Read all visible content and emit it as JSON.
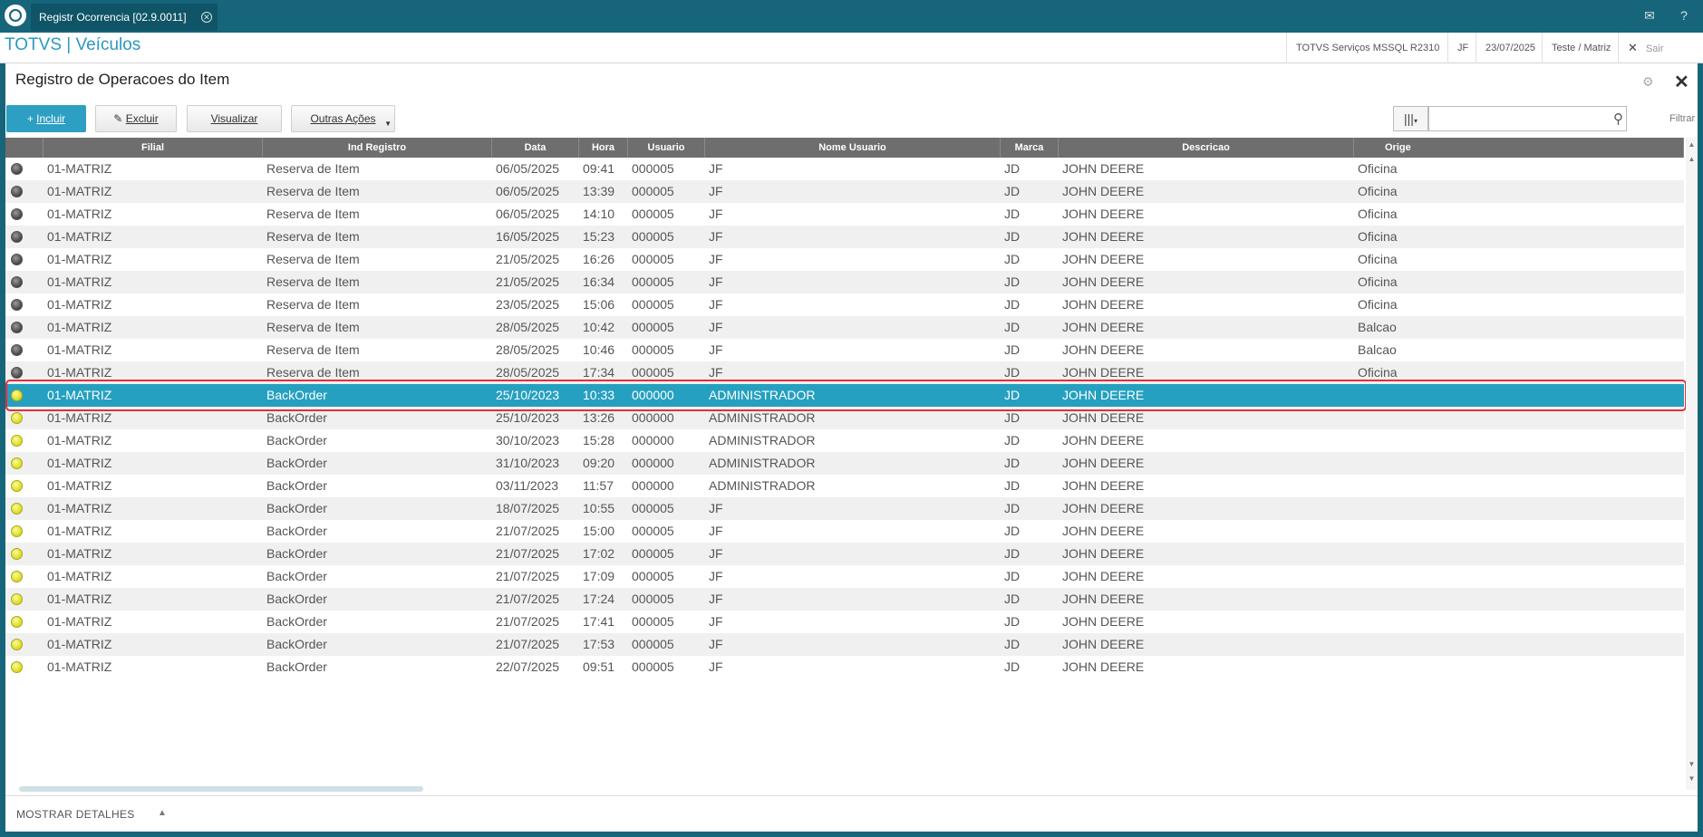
{
  "window": {
    "tab_title": "Registr Ocorrencia [02.9.0011]"
  },
  "appbar": {
    "title": "TOTVS | Veículos",
    "env": "TOTVS Serviços MSSQL R2310",
    "user": "JF",
    "date": "23/07/2025",
    "company": "Teste / Matriz",
    "logout": "Sair"
  },
  "panel": {
    "title": "Registro de Operacoes do Item",
    "toolbar": {
      "incluir": "Incluir",
      "excluir": "Excluir",
      "visualizar": "Visualizar",
      "outras": "Outras Ações"
    },
    "filter_label": "Filtrar"
  },
  "grid": {
    "columns": [
      "Filial",
      "Ind Registro",
      "Data",
      "Hora",
      "Usuario",
      "Nome Usuario",
      "Marca",
      "Descricao",
      "Orige"
    ],
    "rows": [
      {
        "status": "gray",
        "filial": "01-MATRIZ",
        "ind": "Reserva de Item",
        "data": "06/05/2025",
        "hora": "09:41",
        "usuario": "000005",
        "nome": "JF",
        "marca": "JD",
        "descricao": "JOHN DEERE",
        "origem": "Oficina"
      },
      {
        "status": "gray",
        "filial": "01-MATRIZ",
        "ind": "Reserva de Item",
        "data": "06/05/2025",
        "hora": "13:39",
        "usuario": "000005",
        "nome": "JF",
        "marca": "JD",
        "descricao": "JOHN DEERE",
        "origem": "Oficina"
      },
      {
        "status": "gray",
        "filial": "01-MATRIZ",
        "ind": "Reserva de Item",
        "data": "06/05/2025",
        "hora": "14:10",
        "usuario": "000005",
        "nome": "JF",
        "marca": "JD",
        "descricao": "JOHN DEERE",
        "origem": "Oficina"
      },
      {
        "status": "gray",
        "filial": "01-MATRIZ",
        "ind": "Reserva de Item",
        "data": "16/05/2025",
        "hora": "15:23",
        "usuario": "000005",
        "nome": "JF",
        "marca": "JD",
        "descricao": "JOHN DEERE",
        "origem": "Oficina"
      },
      {
        "status": "gray",
        "filial": "01-MATRIZ",
        "ind": "Reserva de Item",
        "data": "21/05/2025",
        "hora": "16:26",
        "usuario": "000005",
        "nome": "JF",
        "marca": "JD",
        "descricao": "JOHN DEERE",
        "origem": "Oficina"
      },
      {
        "status": "gray",
        "filial": "01-MATRIZ",
        "ind": "Reserva de Item",
        "data": "21/05/2025",
        "hora": "16:34",
        "usuario": "000005",
        "nome": "JF",
        "marca": "JD",
        "descricao": "JOHN DEERE",
        "origem": "Oficina"
      },
      {
        "status": "gray",
        "filial": "01-MATRIZ",
        "ind": "Reserva de Item",
        "data": "23/05/2025",
        "hora": "15:06",
        "usuario": "000005",
        "nome": "JF",
        "marca": "JD",
        "descricao": "JOHN DEERE",
        "origem": "Oficina"
      },
      {
        "status": "gray",
        "filial": "01-MATRIZ",
        "ind": "Reserva de Item",
        "data": "28/05/2025",
        "hora": "10:42",
        "usuario": "000005",
        "nome": "JF",
        "marca": "JD",
        "descricao": "JOHN DEERE",
        "origem": "Balcao"
      },
      {
        "status": "gray",
        "filial": "01-MATRIZ",
        "ind": "Reserva de Item",
        "data": "28/05/2025",
        "hora": "10:46",
        "usuario": "000005",
        "nome": "JF",
        "marca": "JD",
        "descricao": "JOHN DEERE",
        "origem": "Balcao"
      },
      {
        "status": "gray",
        "filial": "01-MATRIZ",
        "ind": "Reserva de Item",
        "data": "28/05/2025",
        "hora": "17:34",
        "usuario": "000005",
        "nome": "JF",
        "marca": "JD",
        "descricao": "JOHN DEERE",
        "origem": "Oficina"
      },
      {
        "status": "yellow",
        "filial": "01-MATRIZ",
        "ind": "BackOrder",
        "data": "25/10/2023",
        "hora": "10:33",
        "usuario": "000000",
        "nome": "ADMINISTRADOR",
        "marca": "JD",
        "descricao": "JOHN DEERE",
        "origem": "",
        "selected": true
      },
      {
        "status": "yellow",
        "filial": "01-MATRIZ",
        "ind": "BackOrder",
        "data": "25/10/2023",
        "hora": "13:26",
        "usuario": "000000",
        "nome": "ADMINISTRADOR",
        "marca": "JD",
        "descricao": "JOHN DEERE",
        "origem": ""
      },
      {
        "status": "yellow",
        "filial": "01-MATRIZ",
        "ind": "BackOrder",
        "data": "30/10/2023",
        "hora": "15:28",
        "usuario": "000000",
        "nome": "ADMINISTRADOR",
        "marca": "JD",
        "descricao": "JOHN DEERE",
        "origem": ""
      },
      {
        "status": "yellow",
        "filial": "01-MATRIZ",
        "ind": "BackOrder",
        "data": "31/10/2023",
        "hora": "09:20",
        "usuario": "000000",
        "nome": "ADMINISTRADOR",
        "marca": "JD",
        "descricao": "JOHN DEERE",
        "origem": ""
      },
      {
        "status": "yellow",
        "filial": "01-MATRIZ",
        "ind": "BackOrder",
        "data": "03/11/2023",
        "hora": "11:57",
        "usuario": "000000",
        "nome": "ADMINISTRADOR",
        "marca": "JD",
        "descricao": "JOHN DEERE",
        "origem": ""
      },
      {
        "status": "yellow",
        "filial": "01-MATRIZ",
        "ind": "BackOrder",
        "data": "18/07/2025",
        "hora": "10:55",
        "usuario": "000005",
        "nome": "JF",
        "marca": "JD",
        "descricao": "JOHN DEERE",
        "origem": ""
      },
      {
        "status": "yellow",
        "filial": "01-MATRIZ",
        "ind": "BackOrder",
        "data": "21/07/2025",
        "hora": "15:00",
        "usuario": "000005",
        "nome": "JF",
        "marca": "JD",
        "descricao": "JOHN DEERE",
        "origem": ""
      },
      {
        "status": "yellow",
        "filial": "01-MATRIZ",
        "ind": "BackOrder",
        "data": "21/07/2025",
        "hora": "17:02",
        "usuario": "000005",
        "nome": "JF",
        "marca": "JD",
        "descricao": "JOHN DEERE",
        "origem": ""
      },
      {
        "status": "yellow",
        "filial": "01-MATRIZ",
        "ind": "BackOrder",
        "data": "21/07/2025",
        "hora": "17:09",
        "usuario": "000005",
        "nome": "JF",
        "marca": "JD",
        "descricao": "JOHN DEERE",
        "origem": ""
      },
      {
        "status": "yellow",
        "filial": "01-MATRIZ",
        "ind": "BackOrder",
        "data": "21/07/2025",
        "hora": "17:24",
        "usuario": "000005",
        "nome": "JF",
        "marca": "JD",
        "descricao": "JOHN DEERE",
        "origem": ""
      },
      {
        "status": "yellow",
        "filial": "01-MATRIZ",
        "ind": "BackOrder",
        "data": "21/07/2025",
        "hora": "17:41",
        "usuario": "000005",
        "nome": "JF",
        "marca": "JD",
        "descricao": "JOHN DEERE",
        "origem": ""
      },
      {
        "status": "yellow",
        "filial": "01-MATRIZ",
        "ind": "BackOrder",
        "data": "21/07/2025",
        "hora": "17:53",
        "usuario": "000005",
        "nome": "JF",
        "marca": "JD",
        "descricao": "JOHN DEERE",
        "origem": ""
      },
      {
        "status": "yellow",
        "filial": "01-MATRIZ",
        "ind": "BackOrder",
        "data": "22/07/2025",
        "hora": "09:51",
        "usuario": "000005",
        "nome": "JF",
        "marca": "JD",
        "descricao": "JOHN DEERE",
        "origem": ""
      }
    ]
  },
  "footer": {
    "details_label": "MOSTRAR DETALHES"
  }
}
